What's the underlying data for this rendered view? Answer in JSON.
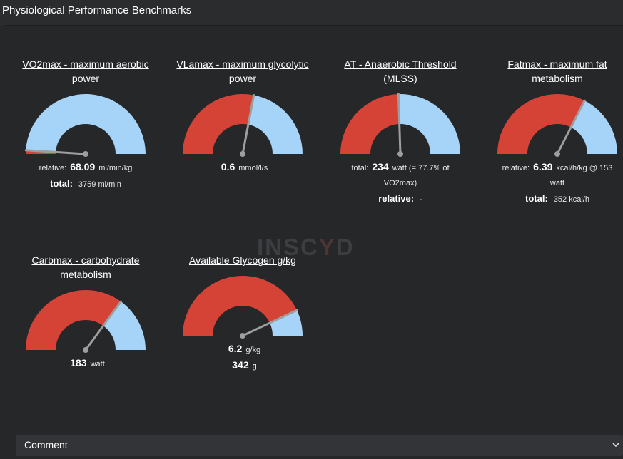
{
  "page": {
    "title": "Physiological Performance Benchmarks"
  },
  "watermark": {
    "text_a": "INSC",
    "text_b": "Y",
    "text_c": "D"
  },
  "colors": {
    "red": "#d44335",
    "blue": "#a6d3f8",
    "needle": "#9e9e9e"
  },
  "cards": [
    {
      "title": "VO2max - maximum aerobic power",
      "level": 0.02,
      "lines": [
        {
          "label": "relative:",
          "value": "68.09",
          "unit": "ml/min/kg"
        },
        {
          "strong_label": "total:",
          "value": "",
          "unit": "3759 ml/min"
        }
      ]
    },
    {
      "title": "VLamax - maximum glycolytic power",
      "level": 0.56,
      "lines": [
        {
          "label": "",
          "value": "0.6",
          "unit": "mmol/l/s"
        }
      ]
    },
    {
      "title": "AT - Anaerobic Threshold (MLSS)",
      "level": 0.49,
      "lines": [
        {
          "label": "total:",
          "value": "234",
          "unit": "watt (= 77.7% of"
        },
        {
          "label": "",
          "value": "",
          "unit": "VO2max)"
        },
        {
          "strong_label": "relative:",
          "value": "",
          "unit": "-"
        }
      ]
    },
    {
      "title": "Fatmax - maximum fat metabolism",
      "level": 0.65,
      "lines": [
        {
          "label": "relative:",
          "value": "6.39",
          "unit": "kcal/h/kg @ 153"
        },
        {
          "label": "",
          "value": "",
          "unit": "watt"
        },
        {
          "strong_label": "total:",
          "value": "",
          "unit": "352 kcal/h"
        }
      ]
    },
    {
      "title": "Carbmax - carbohydrate metabolism",
      "level": 0.7,
      "lines": [
        {
          "label": "",
          "value": "183",
          "unit": "watt"
        }
      ]
    },
    {
      "title": "Available Glycogen g/kg",
      "level": 0.86,
      "lines": [
        {
          "label": "",
          "value": "6.2",
          "unit": "g/kg"
        },
        {
          "label": "",
          "value": "342",
          "unit": "g"
        }
      ]
    }
  ],
  "comment": {
    "label": "Comment",
    "icon": "chevron-down-icon"
  }
}
